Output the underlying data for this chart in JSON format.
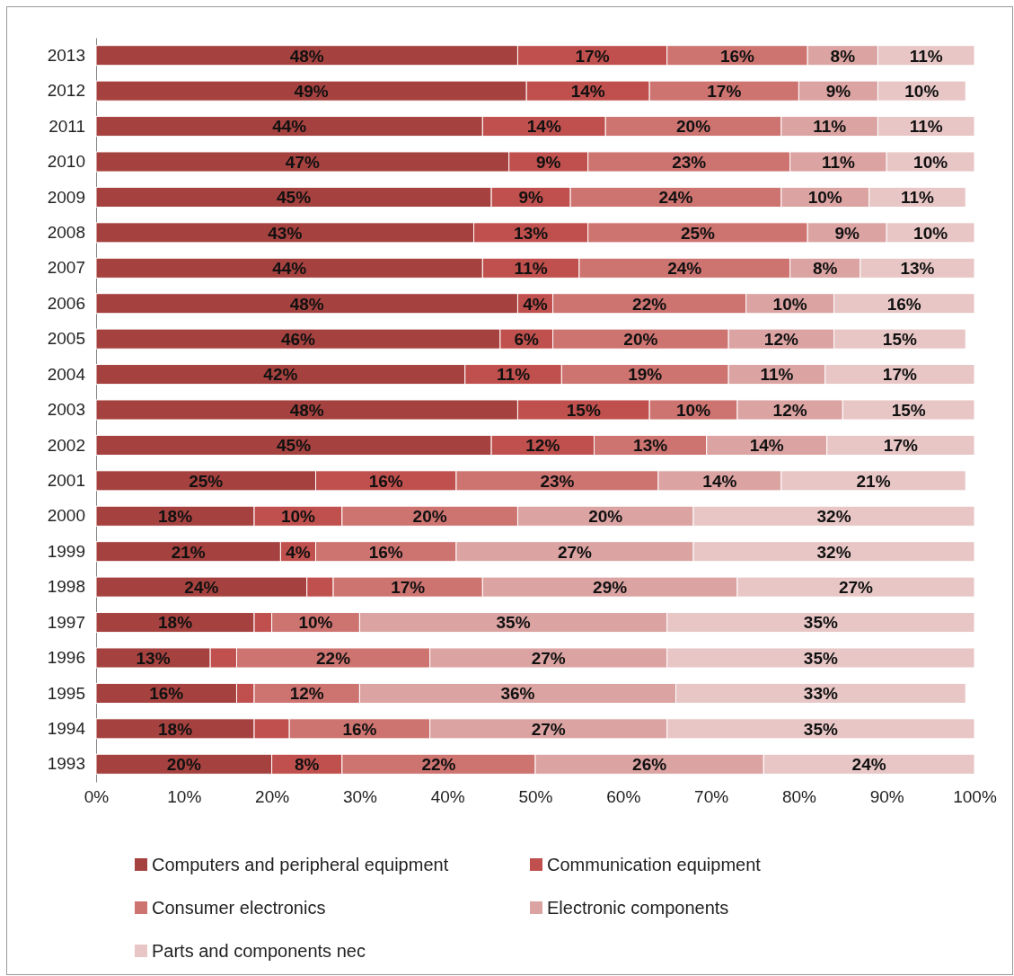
{
  "chart_data": {
    "type": "bar",
    "orientation": "horizontal",
    "stacked": true,
    "legend": "bottom",
    "categories": [
      "2013",
      "2012",
      "2011",
      "2010",
      "2009",
      "2008",
      "2007",
      "2006",
      "2005",
      "2004",
      "2003",
      "2002",
      "2001",
      "2000",
      "1999",
      "1998",
      "1997",
      "1996",
      "1995",
      "1994",
      "1993"
    ],
    "xlim": [
      0,
      100
    ],
    "xticks": [
      {
        "value": 0,
        "label": "0%"
      },
      {
        "value": 10,
        "label": "10%"
      },
      {
        "value": 20,
        "label": "20%"
      },
      {
        "value": 30,
        "label": "30%"
      },
      {
        "value": 40,
        "label": "40%"
      },
      {
        "value": 50,
        "label": "50%"
      },
      {
        "value": 60,
        "label": "60%"
      },
      {
        "value": 70,
        "label": "70%"
      },
      {
        "value": 80,
        "label": "80%"
      },
      {
        "value": 90,
        "label": "90%"
      },
      {
        "value": 100,
        "label": "100%"
      }
    ],
    "series": [
      {
        "name": "Computers and peripheral equipment",
        "color": "#a5423f",
        "values": [
          48,
          49,
          44,
          47,
          45,
          43,
          44,
          48,
          46,
          42,
          48,
          45,
          25,
          18,
          21,
          24,
          18,
          13,
          16,
          18,
          20
        ],
        "value_labels": [
          "48%",
          "49%",
          "44%",
          "47%",
          "45%",
          "43%",
          "44%",
          "48%",
          "46%",
          "42%",
          "48%",
          "45%",
          "25%",
          "18%",
          "21%",
          "24%",
          "18%",
          "13%",
          "16%",
          "18%",
          "20%"
        ]
      },
      {
        "name": "Communication equipment",
        "color": "#c0504d",
        "values": [
          17,
          14,
          14,
          9,
          9,
          13,
          11,
          4,
          6,
          11,
          15,
          11.7,
          16,
          10,
          4,
          3,
          2,
          3,
          2,
          4,
          8
        ],
        "value_labels": [
          "17%",
          "14%",
          "14%",
          "9%",
          "9%",
          "13%",
          "11%",
          "4%",
          "6%",
          "11%",
          "15%",
          "12%",
          "16%",
          "10%",
          "4%",
          null,
          null,
          null,
          null,
          null,
          "8%"
        ]
      },
      {
        "name": "Consumer electronics",
        "color": "#cd7370",
        "values": [
          16,
          17,
          20,
          23,
          24,
          25,
          24,
          22,
          20,
          19,
          10,
          12.8,
          23,
          20,
          16,
          17,
          10,
          22,
          12,
          16,
          22
        ],
        "value_labels": [
          "16%",
          "17%",
          "20%",
          "23%",
          "24%",
          "25%",
          "24%",
          "22%",
          "20%",
          "19%",
          "10%",
          "13%",
          "23%",
          "20%",
          "16%",
          "17%",
          "10%",
          "22%",
          "12%",
          "16%",
          "22%"
        ]
      },
      {
        "name": "Electronic components",
        "color": "#dba3a2",
        "values": [
          8,
          9,
          11,
          11,
          10,
          9,
          8,
          10,
          12,
          11,
          12,
          13.7,
          14,
          20,
          27,
          29,
          35,
          27,
          36,
          27,
          26
        ],
        "value_labels": [
          "8%",
          "9%",
          "11%",
          "11%",
          "10%",
          "9%",
          "8%",
          "10%",
          "12%",
          "11%",
          "12%",
          "14%",
          "14%",
          "20%",
          "27%",
          "29%",
          "35%",
          "27%",
          "36%",
          "27%",
          "26%"
        ]
      },
      {
        "name": "Parts and components nec",
        "color": "#e8c6c6",
        "values": [
          11,
          10,
          11,
          10,
          11,
          10,
          13,
          16,
          15,
          17,
          15,
          16.8,
          21,
          32,
          32,
          27,
          35,
          35,
          33,
          35,
          24
        ],
        "value_labels": [
          "11%",
          "10%",
          "11%",
          "10%",
          "11%",
          "10%",
          "13%",
          "16%",
          "15%",
          "17%",
          "15%",
          "17%",
          "21%",
          "32%",
          "32%",
          "27%",
          "35%",
          "35%",
          "33%",
          "35%",
          "24%"
        ]
      }
    ]
  }
}
